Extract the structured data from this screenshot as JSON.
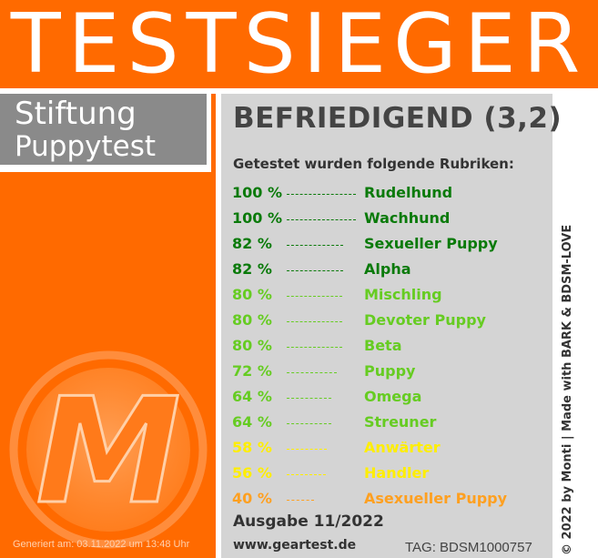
{
  "banner": {
    "title": "TESTSIEGER",
    "color": "#ff6a00"
  },
  "brand": {
    "line1": "Stiftung",
    "line2": "Puppytest"
  },
  "logo": {
    "letter": "M"
  },
  "generated": "Generiert am: 03.11.2022 um 13:48 Uhr",
  "card": {
    "grade": "BEFRIEDIGEND (3,2)",
    "subtitle": "Getestet wurden folgende Rubriken:",
    "rows": [
      {
        "pct": "100 %",
        "value": 100,
        "category": "Rudelhund",
        "color": "#0a7a0a"
      },
      {
        "pct": "100 %",
        "value": 100,
        "category": "Wachhund",
        "color": "#0a7a0a"
      },
      {
        "pct": "82 %",
        "value": 82,
        "category": "Sexueller Puppy",
        "color": "#0a7a0a"
      },
      {
        "pct": "82 %",
        "value": 82,
        "category": "Alpha",
        "color": "#0a7a0a"
      },
      {
        "pct": "80 %",
        "value": 80,
        "category": "Mischling",
        "color": "#66cc22"
      },
      {
        "pct": "80 %",
        "value": 80,
        "category": "Devoter Puppy",
        "color": "#66cc22"
      },
      {
        "pct": "80 %",
        "value": 80,
        "category": "Beta",
        "color": "#66cc22"
      },
      {
        "pct": "72 %",
        "value": 72,
        "category": "Puppy",
        "color": "#66cc22"
      },
      {
        "pct": "64 %",
        "value": 64,
        "category": "Omega",
        "color": "#66cc22"
      },
      {
        "pct": "64 %",
        "value": 64,
        "category": "Streuner",
        "color": "#66cc22"
      },
      {
        "pct": "58 %",
        "value": 58,
        "category": "Anwärter",
        "color": "#ffee00"
      },
      {
        "pct": "56 %",
        "value": 56,
        "category": "Handler",
        "color": "#ffee00"
      },
      {
        "pct": "40 %",
        "value": 40,
        "category": "Asexueller Puppy",
        "color": "#ffa020"
      }
    ],
    "issue": "Ausgabe 11/2022",
    "website": "www.geartest.de",
    "tag": "TAG: BDSM1000757"
  },
  "credit": "© 2022 by Monti | Made with BARK & BDSM-LOVE"
}
